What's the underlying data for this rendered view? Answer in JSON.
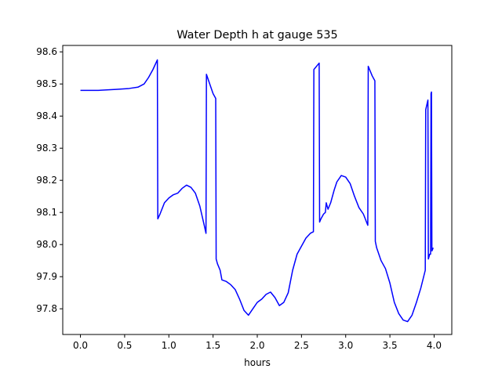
{
  "chart_data": {
    "type": "line",
    "title": "Water Depth h at gauge 535",
    "xlabel": "hours",
    "ylabel": "",
    "xlim": [
      -0.2,
      4.2
    ],
    "ylim": [
      97.72,
      98.62
    ],
    "xticks": [
      0.0,
      0.5,
      1.0,
      1.5,
      2.0,
      2.5,
      3.0,
      3.5,
      4.0
    ],
    "xtick_labels": [
      "0.0",
      "0.5",
      "1.0",
      "1.5",
      "2.0",
      "2.5",
      "3.0",
      "3.5",
      "4.0"
    ],
    "yticks": [
      97.8,
      97.9,
      98.0,
      98.1,
      98.2,
      98.3,
      98.4,
      98.5,
      98.6
    ],
    "ytick_labels": [
      "97.8",
      "97.9",
      "98.0",
      "98.1",
      "98.2",
      "98.3",
      "98.4",
      "98.5",
      "98.6"
    ],
    "grid": false,
    "series": [
      {
        "color": "#0000ff",
        "points": [
          [
            0.0,
            98.48
          ],
          [
            0.2,
            98.48
          ],
          [
            0.4,
            98.483
          ],
          [
            0.55,
            98.486
          ],
          [
            0.65,
            98.49
          ],
          [
            0.72,
            98.5
          ],
          [
            0.77,
            98.52
          ],
          [
            0.82,
            98.545
          ],
          [
            0.87,
            98.575
          ],
          [
            0.875,
            98.08
          ],
          [
            0.9,
            98.095
          ],
          [
            0.95,
            98.13
          ],
          [
            1.0,
            98.145
          ],
          [
            1.05,
            98.155
          ],
          [
            1.1,
            98.16
          ],
          [
            1.15,
            98.175
          ],
          [
            1.2,
            98.185
          ],
          [
            1.25,
            98.178
          ],
          [
            1.3,
            98.16
          ],
          [
            1.35,
            98.12
          ],
          [
            1.4,
            98.06
          ],
          [
            1.42,
            98.035
          ],
          [
            1.425,
            98.53
          ],
          [
            1.45,
            98.51
          ],
          [
            1.5,
            98.47
          ],
          [
            1.53,
            98.455
          ],
          [
            1.535,
            97.955
          ],
          [
            1.55,
            97.94
          ],
          [
            1.58,
            97.92
          ],
          [
            1.6,
            97.89
          ],
          [
            1.65,
            97.885
          ],
          [
            1.7,
            97.875
          ],
          [
            1.75,
            97.86
          ],
          [
            1.8,
            97.83
          ],
          [
            1.85,
            97.795
          ],
          [
            1.9,
            97.78
          ],
          [
            1.95,
            97.8
          ],
          [
            2.0,
            97.82
          ],
          [
            2.05,
            97.83
          ],
          [
            2.1,
            97.845
          ],
          [
            2.15,
            97.852
          ],
          [
            2.2,
            97.835
          ],
          [
            2.25,
            97.81
          ],
          [
            2.3,
            97.82
          ],
          [
            2.35,
            97.85
          ],
          [
            2.4,
            97.92
          ],
          [
            2.45,
            97.97
          ],
          [
            2.5,
            97.995
          ],
          [
            2.55,
            98.02
          ],
          [
            2.6,
            98.035
          ],
          [
            2.635,
            98.04
          ],
          [
            2.64,
            98.545
          ],
          [
            2.7,
            98.565
          ],
          [
            2.705,
            98.07
          ],
          [
            2.72,
            98.08
          ],
          [
            2.75,
            98.095
          ],
          [
            2.77,
            98.1
          ],
          [
            2.78,
            98.13
          ],
          [
            2.8,
            98.11
          ],
          [
            2.83,
            98.13
          ],
          [
            2.87,
            98.17
          ],
          [
            2.9,
            98.195
          ],
          [
            2.95,
            98.215
          ],
          [
            3.0,
            98.21
          ],
          [
            3.05,
            98.19
          ],
          [
            3.1,
            98.15
          ],
          [
            3.15,
            98.115
          ],
          [
            3.2,
            98.095
          ],
          [
            3.25,
            98.06
          ],
          [
            3.255,
            98.555
          ],
          [
            3.3,
            98.525
          ],
          [
            3.33,
            98.51
          ],
          [
            3.335,
            98.01
          ],
          [
            3.35,
            97.99
          ],
          [
            3.4,
            97.95
          ],
          [
            3.45,
            97.925
          ],
          [
            3.5,
            97.88
          ],
          [
            3.55,
            97.82
          ],
          [
            3.6,
            97.785
          ],
          [
            3.65,
            97.765
          ],
          [
            3.7,
            97.76
          ],
          [
            3.75,
            97.78
          ],
          [
            3.8,
            97.82
          ],
          [
            3.85,
            97.865
          ],
          [
            3.9,
            97.92
          ],
          [
            3.905,
            98.42
          ],
          [
            3.93,
            98.45
          ],
          [
            3.935,
            97.955
          ],
          [
            3.95,
            97.97
          ],
          [
            3.96,
            97.97
          ],
          [
            3.965,
            98.47
          ],
          [
            3.97,
            98.475
          ],
          [
            3.975,
            97.98
          ],
          [
            3.99,
            97.99
          ]
        ]
      }
    ]
  }
}
